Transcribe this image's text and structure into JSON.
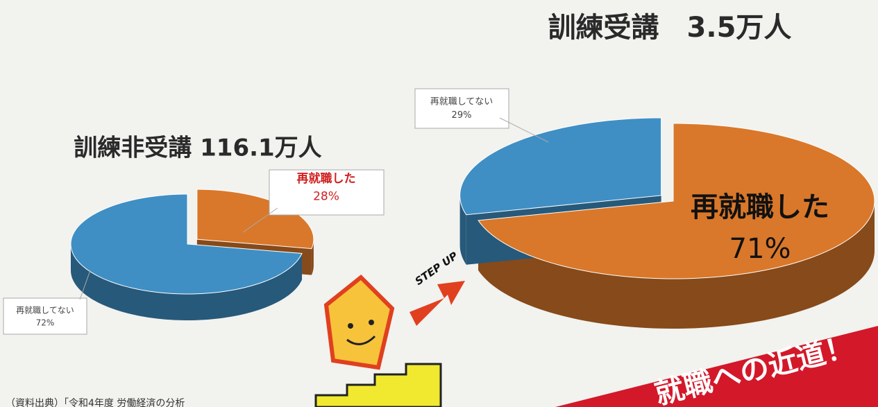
{
  "chart_data": [
    {
      "type": "pie3d",
      "title": "訓練非受講 116.1万人",
      "categories": [
        "再就職した",
        "再就職してない"
      ],
      "values": [
        28,
        72
      ],
      "value_labels": [
        "28%",
        "72%"
      ],
      "colors": [
        "#d9782a",
        "#3f8fc4"
      ],
      "explode": [
        true,
        false
      ]
    },
    {
      "type": "pie3d",
      "title": "訓練受講　3.5万人",
      "categories": [
        "再就職した",
        "再就職してない"
      ],
      "values": [
        71,
        29
      ],
      "value_labels": [
        "71%",
        "29%"
      ],
      "colors": [
        "#d9782a",
        "#3f8fc4"
      ],
      "explode": [
        false,
        true
      ]
    }
  ],
  "source": "（資料出典）「令和4年度 労働経済の分析",
  "step_up": "STEP UP",
  "banner": "就職への近道！"
}
